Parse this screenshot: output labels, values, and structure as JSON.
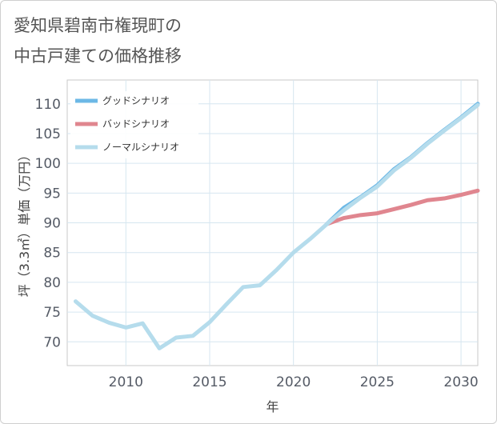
{
  "title_line1": "愛知県碧南市権現町の",
  "title_line2": "中古戸建ての価格推移",
  "chart_data": {
    "type": "line",
    "xlabel": "年",
    "ylabel": "坪（3.3㎡）単価（万円）",
    "xlim": [
      2006.5,
      2031
    ],
    "ylim": [
      66,
      114
    ],
    "xticks": [
      2010,
      2015,
      2020,
      2025,
      2030
    ],
    "yticks": [
      70,
      75,
      80,
      85,
      90,
      95,
      100,
      105,
      110
    ],
    "grid": true,
    "legend_position": "top-left",
    "series": [
      {
        "name": "グッドシナリオ",
        "color": "#6cb8e6",
        "x": [
          2022,
          2023,
          2024,
          2025,
          2026,
          2027,
          2028,
          2029,
          2030,
          2031
        ],
        "y": [
          89.8,
          92.5,
          94.3,
          96.3,
          99.0,
          101.0,
          103.4,
          105.6,
          107.7,
          110.0
        ]
      },
      {
        "name": "バッドシナリオ",
        "color": "#e0868f",
        "x": [
          2022,
          2023,
          2024,
          2025,
          2026,
          2027,
          2028,
          2029,
          2030,
          2031
        ],
        "y": [
          89.8,
          90.8,
          91.3,
          91.6,
          92.3,
          93.0,
          93.8,
          94.1,
          94.7,
          95.4
        ]
      },
      {
        "name": "ノーマルシナリオ",
        "color": "#b5dcec",
        "x": [
          2007,
          2008,
          2009,
          2010,
          2011,
          2012,
          2013,
          2014,
          2015,
          2016,
          2017,
          2018,
          2019,
          2020,
          2021,
          2022,
          2023,
          2024,
          2025,
          2026,
          2027,
          2028,
          2029,
          2030,
          2031
        ],
        "y": [
          76.8,
          74.4,
          73.2,
          72.4,
          73.1,
          68.9,
          70.7,
          71.0,
          73.3,
          76.3,
          79.2,
          79.5,
          82.1,
          85.0,
          87.3,
          89.8,
          92.1,
          94.2,
          96.1,
          98.8,
          100.9,
          103.3,
          105.5,
          107.6,
          109.8
        ]
      }
    ]
  }
}
